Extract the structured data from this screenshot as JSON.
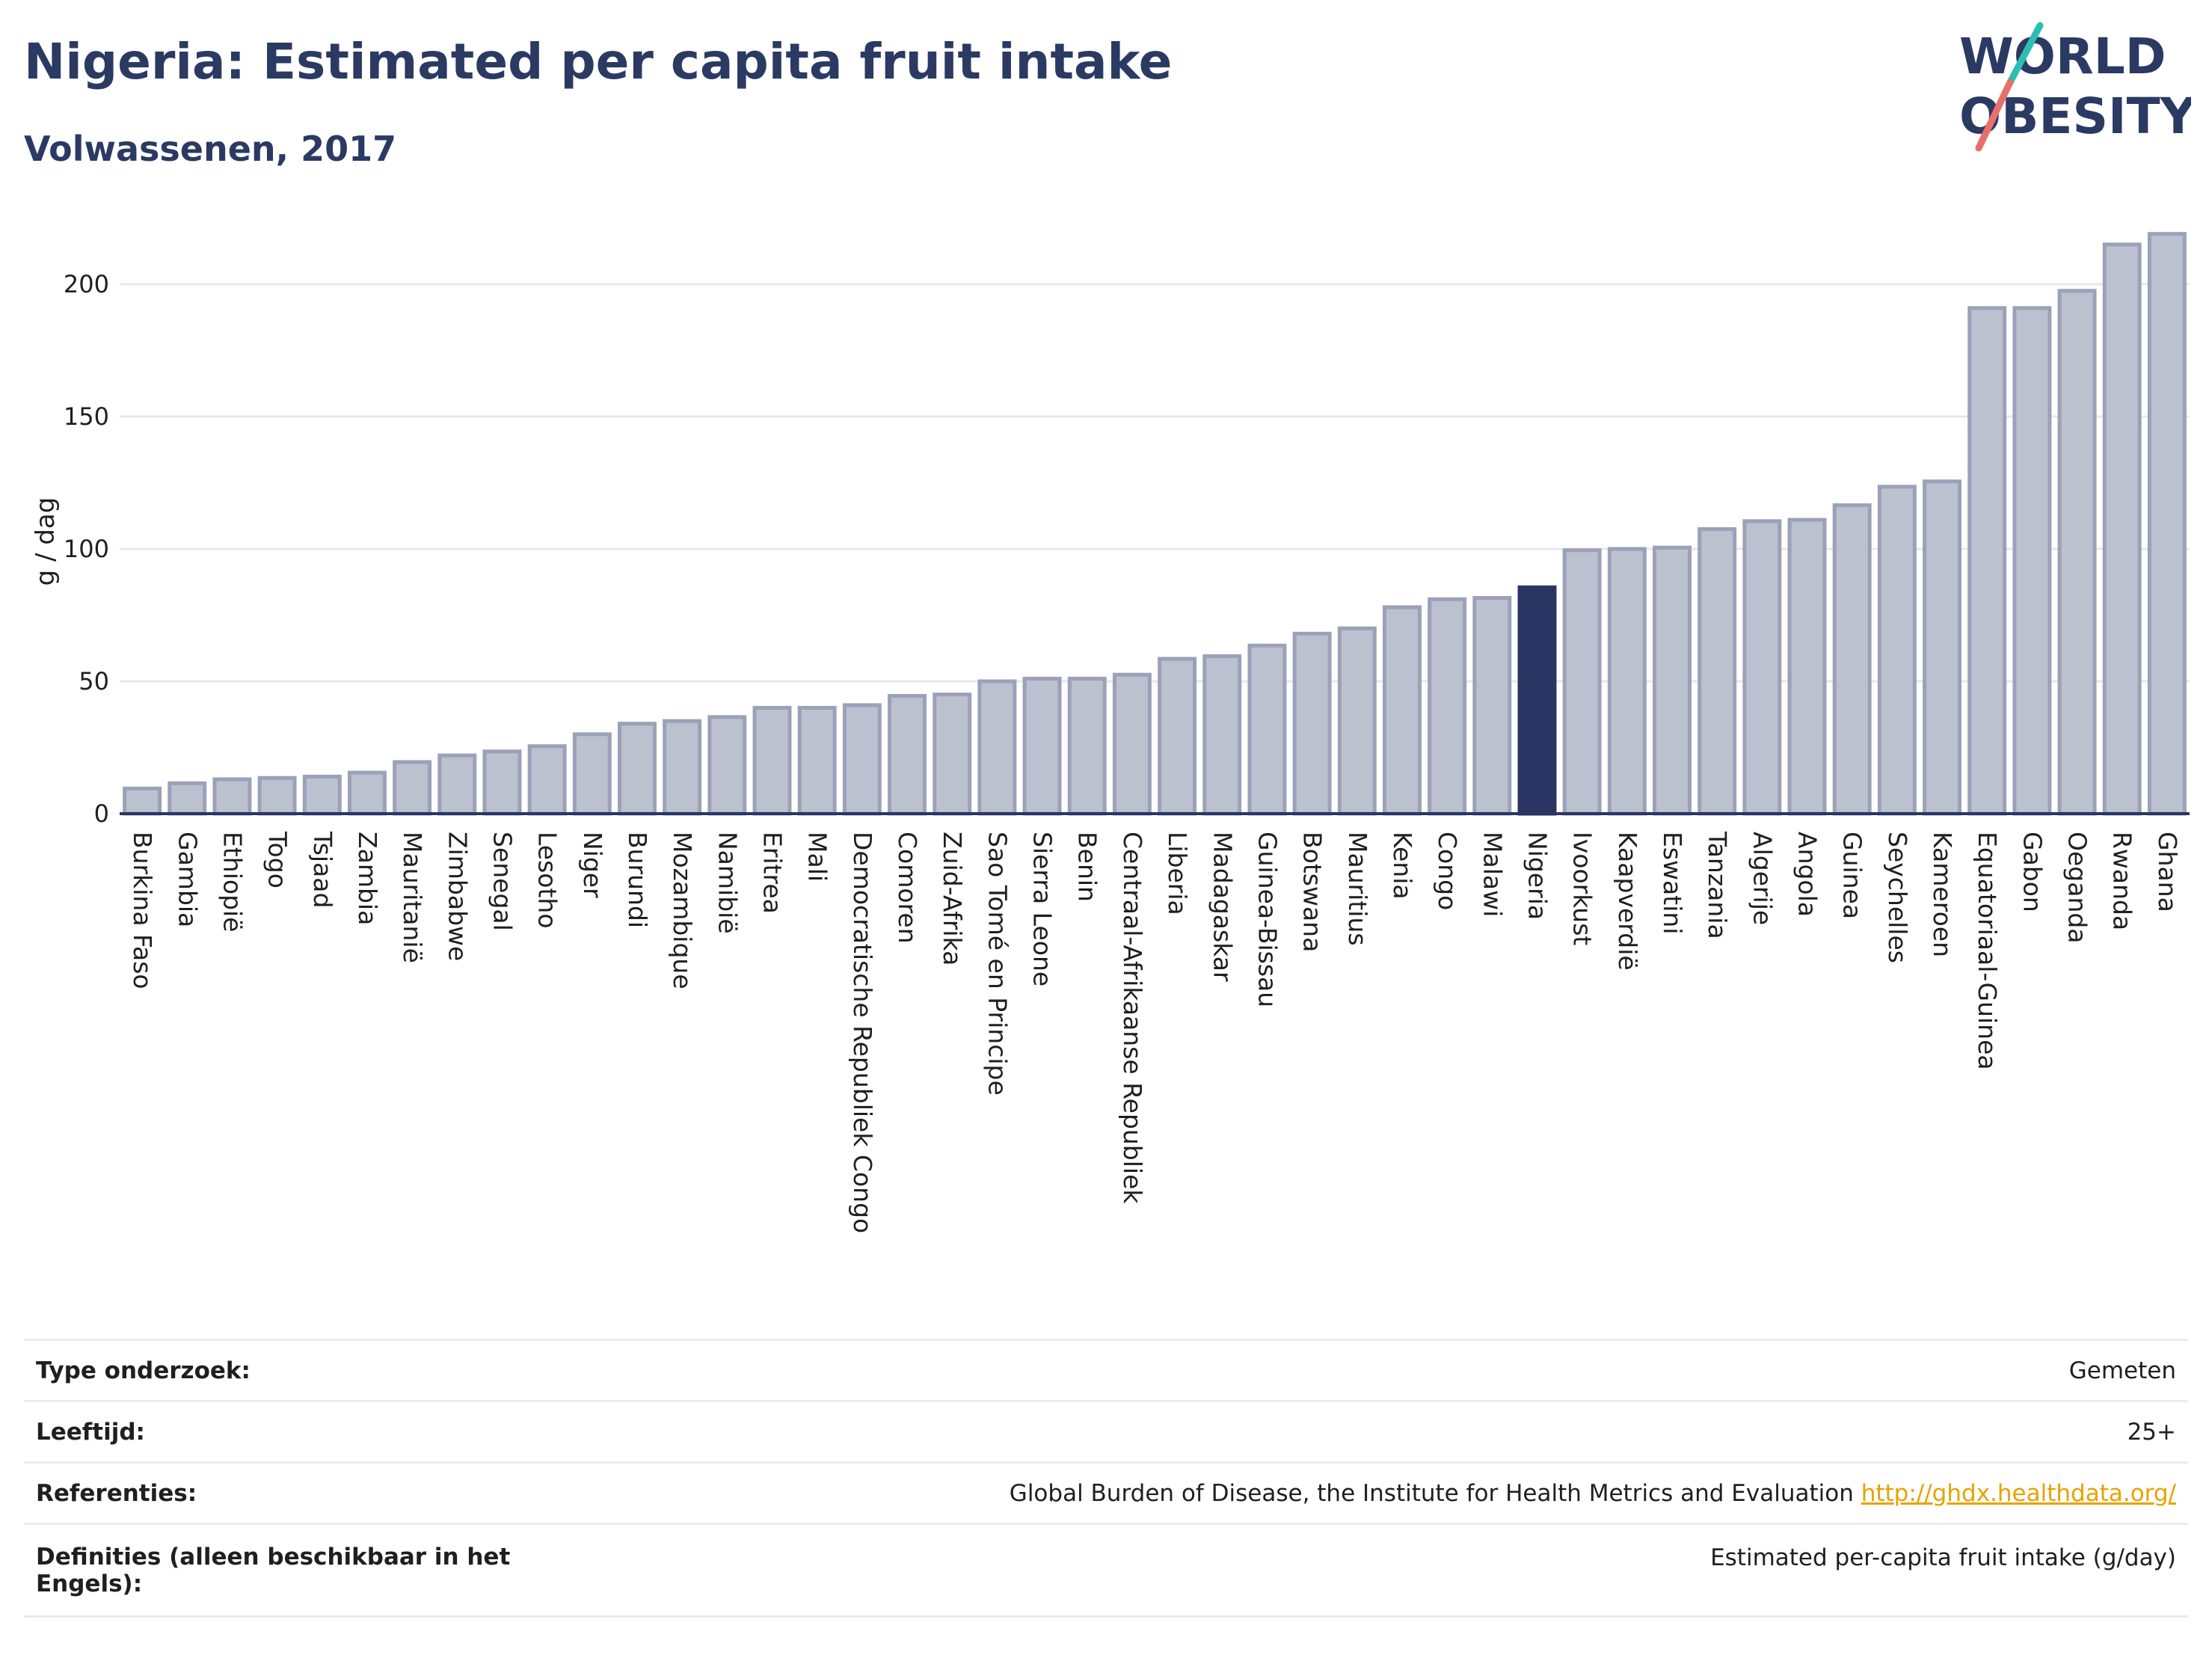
{
  "header": {
    "title": "Nigeria: Estimated per capita fruit intake",
    "subtitle": "Volwassenen, 2017"
  },
  "logo": {
    "line1": "WORLD",
    "line2": "OBESITY",
    "colors": {
      "text": "#2b3a63",
      "slash_top": "#2bbfb3",
      "slash_bottom": "#e8706a"
    }
  },
  "chart_data": {
    "type": "bar",
    "ylabel": "g / dag",
    "ylim": [
      0,
      220
    ],
    "yticks": [
      0,
      50,
      100,
      150,
      200
    ],
    "grid": true,
    "highlight": "Nigeria",
    "colors": {
      "bar": "#bcc1d0",
      "bar_edge": "#9aa1b8",
      "highlight": "#2b3563",
      "axis": "#2b3563",
      "grid": "#e6e8ef"
    },
    "categories": [
      "Burkina Faso",
      "Gambia",
      "Ethiopië",
      "Togo",
      "Tsjaad",
      "Zambia",
      "Mauritanië",
      "Zimbabwe",
      "Senegal",
      "Lesotho",
      "Niger",
      "Burundi",
      "Mozambique",
      "Namibië",
      "Eritrea",
      "Mali",
      "Democratische Republiek Congo",
      "Comoren",
      "Zuid-Afrika",
      "Sao Tomé en Principe",
      "Sierra Leone",
      "Benin",
      "Centraal-Afrikaanse Republiek",
      "Liberia",
      "Madagaskar",
      "Guinea-Bissau",
      "Botswana",
      "Mauritius",
      "Kenia",
      "Congo",
      "Malawi",
      "Nigeria",
      "Ivoorkust",
      "Kaapverdië",
      "Eswatini",
      "Tanzania",
      "Algerije",
      "Angola",
      "Guinea",
      "Seychelles",
      "Kameroen",
      "Equatoriaal-Guinea",
      "Gabon",
      "Oeganda",
      "Rwanda",
      "Ghana"
    ],
    "values": [
      9.5,
      11.5,
      13,
      13.5,
      14,
      15.5,
      19.5,
      22,
      23.5,
      25.5,
      30,
      34,
      35,
      36.5,
      40,
      40,
      41,
      44.5,
      45,
      50,
      51,
      51,
      52.5,
      58.5,
      59.5,
      63.5,
      68,
      70,
      78,
      81,
      81.5,
      85.5,
      99.5,
      100,
      100.5,
      107.5,
      110.5,
      111,
      116.5,
      123.5,
      125.5,
      191,
      191,
      197.5,
      215,
      219
    ]
  },
  "info_table": {
    "rows": [
      {
        "label": "Type onderzoek:",
        "value": "Gemeten"
      },
      {
        "label": "Leeftijd:",
        "value": "25+"
      },
      {
        "label": "Referenties:",
        "value": "Global Burden of Disease, the Institute for Health Metrics and Evaluation",
        "link": "http://ghdx.healthdata.org/"
      },
      {
        "label": "Definities (alleen beschikbaar in het Engels):",
        "value": "Estimated per-capita fruit intake (g/day)"
      }
    ]
  }
}
